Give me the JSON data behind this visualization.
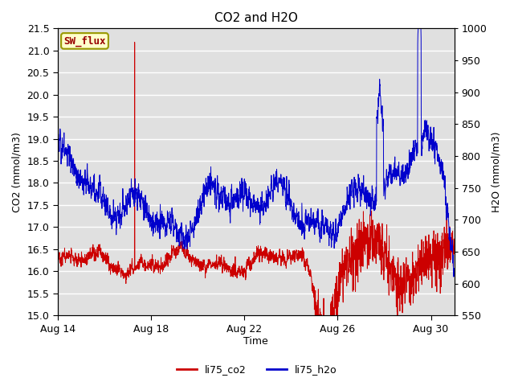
{
  "title": "CO2 and H2O",
  "xlabel": "Time",
  "ylabel_left": "CO2 (mmol/m3)",
  "ylabel_right": "H2O (mmol/m3)",
  "ylim_left": [
    15.0,
    21.5
  ],
  "ylim_right": [
    550,
    1000
  ],
  "yticks_left": [
    15.0,
    15.5,
    16.0,
    16.5,
    17.0,
    17.5,
    18.0,
    18.5,
    19.0,
    19.5,
    20.0,
    20.5,
    21.0,
    21.5
  ],
  "yticks_right": [
    550,
    600,
    650,
    700,
    750,
    800,
    850,
    900,
    950,
    1000
  ],
  "xtick_labels": [
    "Aug 14",
    "Aug 18",
    "Aug 22",
    "Aug 26",
    "Aug 30"
  ],
  "xtick_positions": [
    0,
    4,
    8,
    12,
    16
  ],
  "color_co2": "#cc0000",
  "color_h2o": "#0000cc",
  "color_background": "#e0e0e0",
  "color_fig_bg": "#ffffff",
  "sw_flux_label": "SW_flux",
  "sw_flux_box_color": "#ffffcc",
  "sw_flux_border_color": "#999900",
  "sw_flux_text_color": "#990000",
  "legend_labels": [
    "li75_co2",
    "li75_h2o"
  ],
  "legend_colors": [
    "#cc0000",
    "#0000cc"
  ],
  "seed": 42,
  "n_points": 2000
}
